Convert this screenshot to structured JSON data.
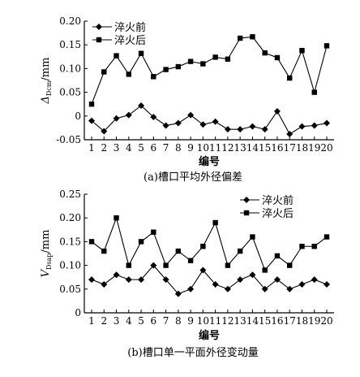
{
  "chart_data": [
    {
      "type": "line",
      "caption": "(a)槽口平均外径偏差",
      "ylabel": "Δ",
      "ylabel_sub": "Dcm",
      "ylabel_unit": "/mm",
      "xlabel": "编号",
      "ylim": [
        -0.05,
        0.2
      ],
      "yticks": [
        "-0.05",
        "0",
        "0.05",
        "0.10",
        "0.15",
        "0.20"
      ],
      "ytick_values": [
        -0.05,
        0,
        0.05,
        0.1,
        0.15,
        0.2
      ],
      "categories": [
        "1",
        "2",
        "3",
        "4",
        "5",
        "6",
        "7",
        "8",
        "9",
        "10",
        "11",
        "12",
        "13",
        "14",
        "15",
        "16",
        "17",
        "18",
        "19",
        "20"
      ],
      "legend_placement": "top-left",
      "series": [
        {
          "name": "淬火前",
          "marker": "diamond",
          "values": [
            -0.01,
            -0.032,
            -0.005,
            0.002,
            0.022,
            -0.002,
            -0.02,
            -0.015,
            0.002,
            -0.018,
            -0.012,
            -0.028,
            -0.028,
            -0.022,
            -0.028,
            0.01,
            -0.038,
            -0.022,
            -0.02,
            -0.015
          ]
        },
        {
          "name": "淬火后",
          "marker": "square",
          "values": [
            0.025,
            0.093,
            0.127,
            0.088,
            0.132,
            0.083,
            0.098,
            0.104,
            0.115,
            0.11,
            0.124,
            0.12,
            0.164,
            0.167,
            0.133,
            0.123,
            0.08,
            0.138,
            0.05,
            0.148
          ]
        }
      ]
    },
    {
      "type": "line",
      "caption": "(b)槽口单一平面外径变动量",
      "ylabel": "V",
      "ylabel_sub": "Dsap",
      "ylabel_unit": "/mm",
      "xlabel": "编号",
      "ylim": [
        0,
        0.25
      ],
      "yticks": [
        "0",
        "0.05",
        "0.10",
        "0.15",
        "0.20",
        "0.25"
      ],
      "ytick_values": [
        0,
        0.05,
        0.1,
        0.15,
        0.2,
        0.25
      ],
      "categories": [
        "1",
        "2",
        "3",
        "4",
        "5",
        "6",
        "7",
        "8",
        "9",
        "10",
        "11",
        "12",
        "13",
        "14",
        "15",
        "16",
        "17",
        "18",
        "19",
        "20"
      ],
      "legend_placement": "top-right",
      "series": [
        {
          "name": "淬火前",
          "marker": "diamond",
          "values": [
            0.07,
            0.06,
            0.08,
            0.07,
            0.07,
            0.1,
            0.07,
            0.04,
            0.05,
            0.09,
            0.06,
            0.05,
            0.07,
            0.08,
            0.05,
            0.07,
            0.05,
            0.06,
            0.07,
            0.06
          ]
        },
        {
          "name": "淬火后",
          "marker": "square",
          "values": [
            0.15,
            0.13,
            0.2,
            0.1,
            0.15,
            0.17,
            0.1,
            0.13,
            0.11,
            0.14,
            0.19,
            0.1,
            0.13,
            0.16,
            0.09,
            0.12,
            0.1,
            0.14,
            0.14,
            0.16
          ]
        }
      ]
    }
  ]
}
